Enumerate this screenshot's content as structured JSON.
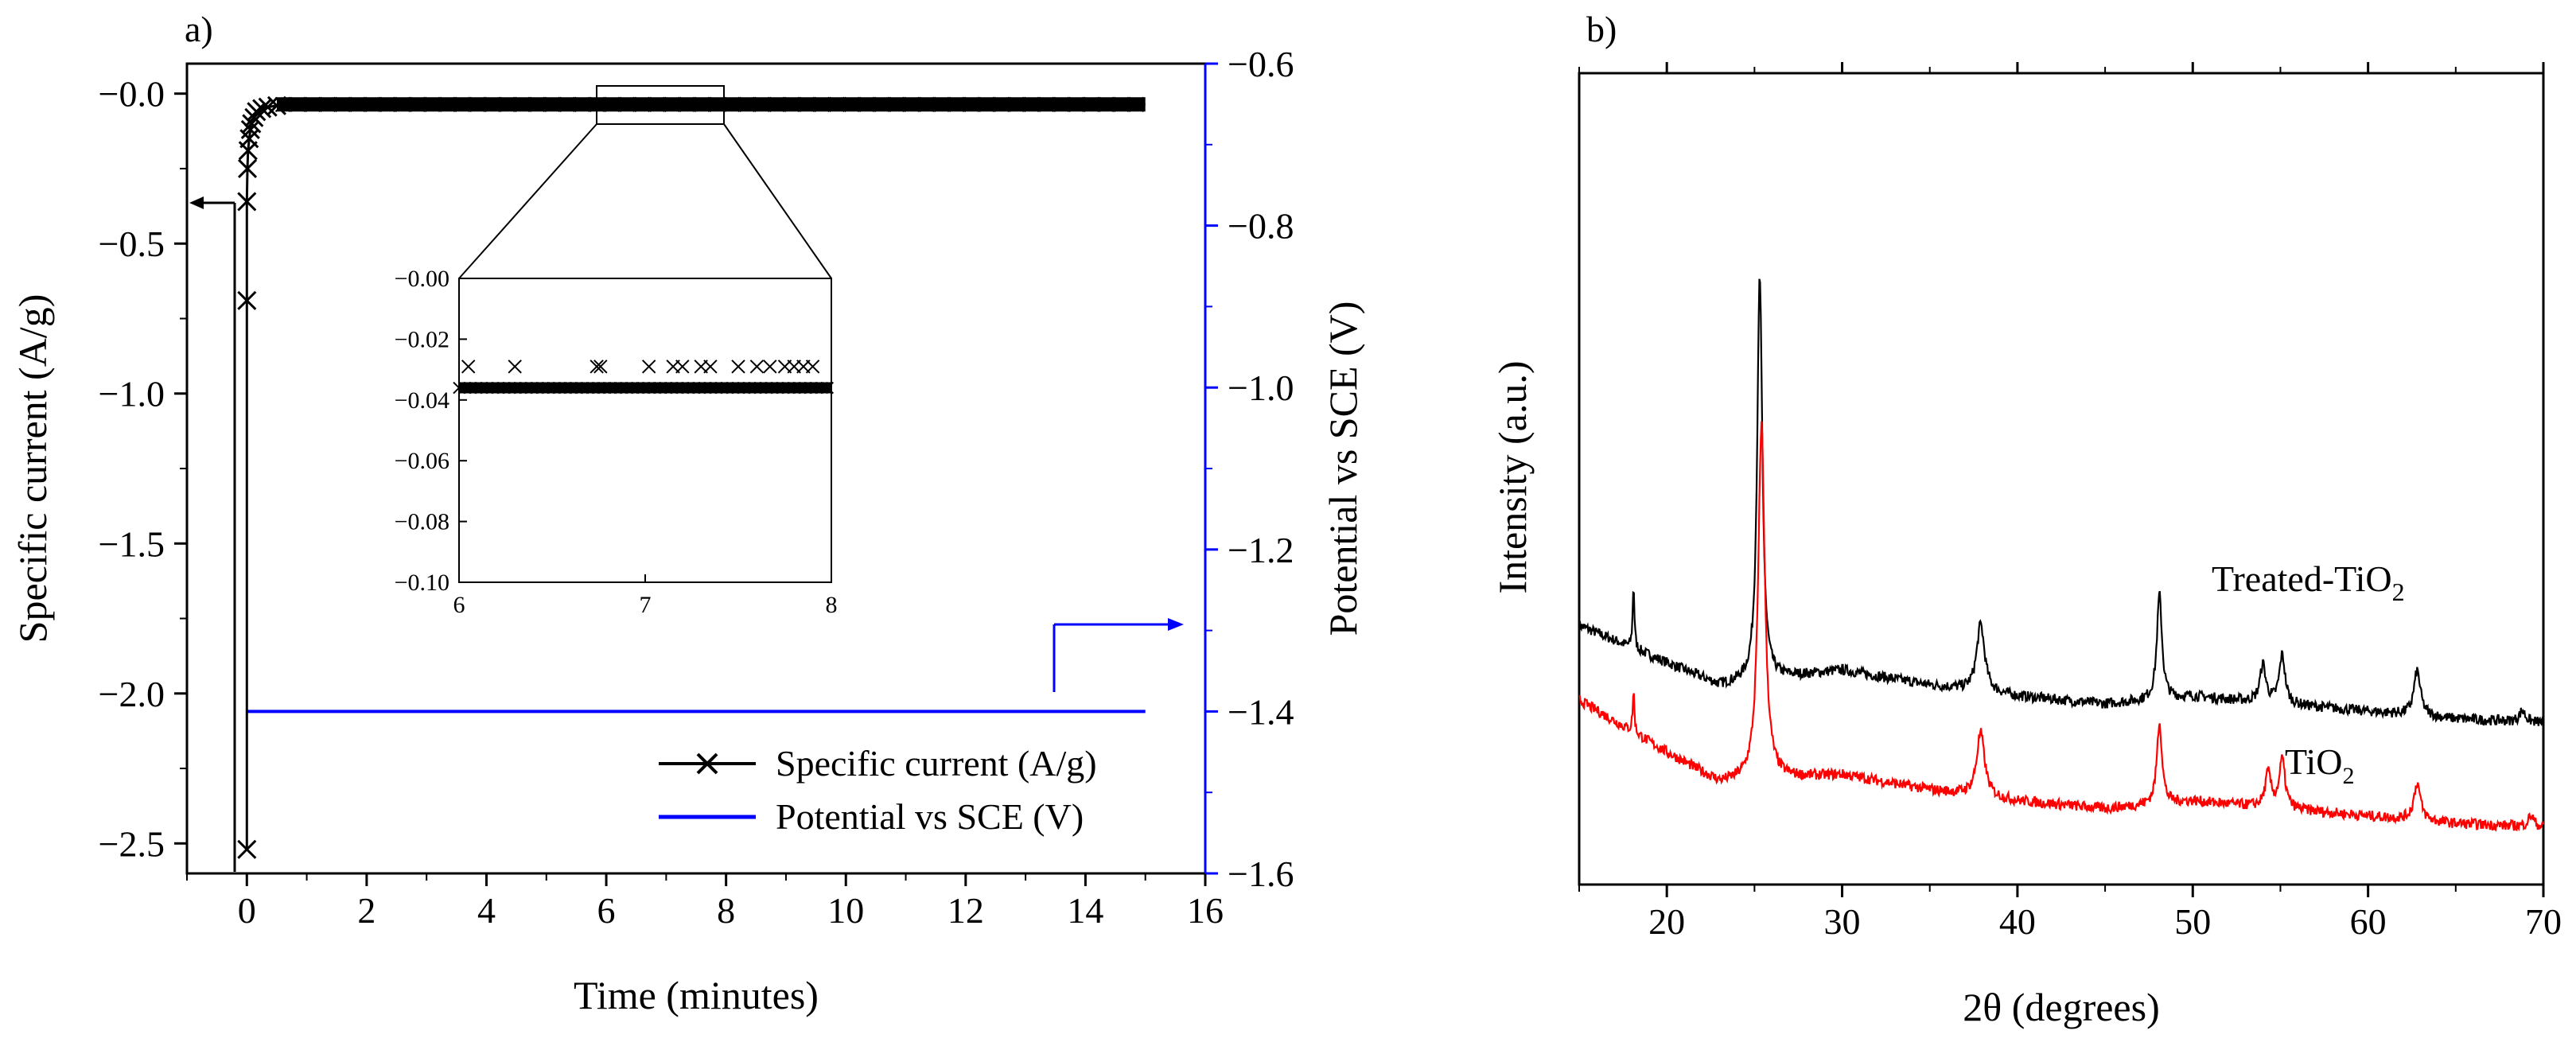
{
  "chart_data": [
    {
      "panel_label": "a)",
      "type": "line",
      "xlabel": "Time (minutes)",
      "ylabel": "Specific current (A/g)",
      "ylabel_right": "Potential vs SCE (V)",
      "xlim": [
        -1,
        16
      ],
      "ylim": [
        -2.6,
        0.1
      ],
      "ylim_right": [
        -1.6,
        -0.6
      ],
      "x_ticks": [
        "0",
        "2",
        "4",
        "6",
        "8",
        "10",
        "12",
        "14",
        "16"
      ],
      "y_ticks": [
        "-0.0",
        "-0.5",
        "-1.0",
        "-1.5",
        "-2.0",
        "-2.5"
      ],
      "y_ticks_right": [
        "-0.6",
        "-0.8",
        "-1.0",
        "-1.2",
        "-1.4",
        "-1.6"
      ],
      "colors": {
        "current": "#000000",
        "potential": "#0000ff"
      },
      "series": [
        {
          "name": "Specific current (A/g)",
          "axis": "left",
          "marker": "x",
          "x": [
            0.0,
            0.0,
            0.0,
            0.01,
            0.02,
            0.04,
            0.06,
            0.08,
            0.12,
            0.16,
            0.25,
            0.35,
            0.5,
            1,
            2,
            4,
            6,
            8,
            10,
            12,
            15
          ],
          "values": [
            -2.52,
            -0.69,
            -0.36,
            -0.25,
            -0.19,
            -0.15,
            -0.12,
            -0.1,
            -0.08,
            -0.06,
            -0.05,
            -0.045,
            -0.04,
            -0.037,
            -0.036,
            -0.036,
            -0.036,
            -0.036,
            -0.036,
            -0.036,
            -0.036
          ]
        },
        {
          "name": "Potential vs SCE (V)",
          "axis": "right",
          "x": [
            0,
            15
          ],
          "values": [
            -1.4,
            -1.4
          ]
        }
      ],
      "inset": {
        "xlim": [
          6,
          8
        ],
        "ylim": [
          -0.1,
          0.0
        ],
        "x_ticks": [
          "6",
          "7",
          "8"
        ],
        "y_ticks": [
          "-0.00",
          "-0.02",
          "-0.04",
          "-0.06",
          "-0.08",
          "-0.10"
        ],
        "band_value": -0.036,
        "upper_x": [
          6.05,
          6.3,
          6.74,
          6.76,
          7.02,
          7.15,
          7.2,
          7.3,
          7.35,
          7.5,
          7.6,
          7.67,
          7.75,
          7.8,
          7.85,
          7.9
        ],
        "upper_value": -0.029
      }
    },
    {
      "panel_label": "b)",
      "type": "line",
      "xlabel": "2θ (degrees)",
      "ylabel": "Intensity (a.u.)",
      "xlim": [
        15,
        70
      ],
      "x_ticks": [
        "20",
        "30",
        "40",
        "50",
        "60",
        "70"
      ],
      "series": [
        {
          "name": "Treated-TiO",
          "subscript": "2",
          "color": "#000000",
          "offset": 0.28,
          "baseline": [
            [
              15,
              0.26
            ],
            [
              20,
              0.16
            ],
            [
              23,
              0.1
            ],
            [
              30,
              0.14
            ],
            [
              35,
              0.1
            ],
            [
              40,
              0.07
            ],
            [
              45,
              0.05
            ],
            [
              50,
              0.07
            ],
            [
              55,
              0.05
            ],
            [
              60,
              0.03
            ],
            [
              65,
              0.01
            ],
            [
              70,
              0.0
            ]
          ],
          "peaks": [
            [
              18.1,
              0.17,
              0.12
            ],
            [
              25.3,
              1.08,
              0.35
            ],
            [
              37.9,
              0.18,
              0.55
            ],
            [
              48.1,
              0.28,
              0.35
            ],
            [
              54.0,
              0.1,
              0.4
            ],
            [
              55.1,
              0.13,
              0.4
            ],
            [
              62.8,
              0.12,
              0.45
            ],
            [
              68.8,
              0.03,
              0.4
            ]
          ]
        },
        {
          "name": "TiO",
          "subscript": "2",
          "color": "#ff0000",
          "offset": 0.0,
          "baseline": [
            [
              15,
              0.34
            ],
            [
              20,
              0.2
            ],
            [
              23,
              0.12
            ],
            [
              30,
              0.14
            ],
            [
              35,
              0.1
            ],
            [
              40,
              0.07
            ],
            [
              45,
              0.05
            ],
            [
              50,
              0.07
            ],
            [
              55,
              0.05
            ],
            [
              60,
              0.03
            ],
            [
              65,
              0.01
            ],
            [
              70,
              0.0
            ]
          ],
          "peaks": [
            [
              18.1,
              0.11,
              0.12
            ],
            [
              25.4,
              0.95,
              0.45
            ],
            [
              37.9,
              0.17,
              0.55
            ],
            [
              48.1,
              0.22,
              0.35
            ],
            [
              54.3,
              0.09,
              0.4
            ],
            [
              55.1,
              0.13,
              0.4
            ],
            [
              62.8,
              0.1,
              0.45
            ],
            [
              69.3,
              0.03,
              0.4
            ]
          ]
        }
      ]
    }
  ]
}
